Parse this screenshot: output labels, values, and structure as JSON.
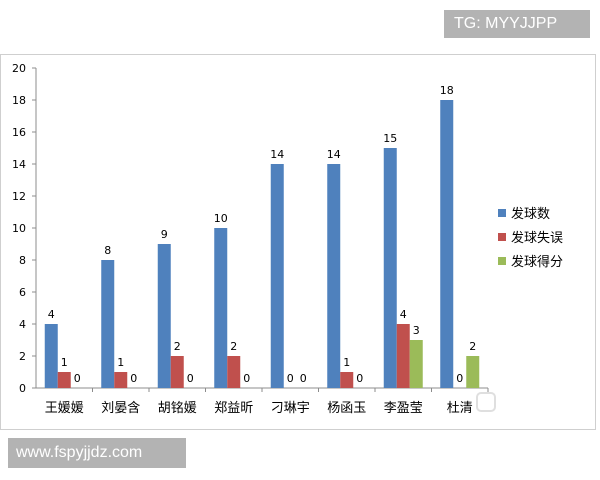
{
  "header_tag": "TG: MYYJJPP",
  "footer_site": "www.fspyjjdz.com",
  "chart_data": {
    "type": "bar",
    "categories": [
      "王媛媛",
      "刘晏含",
      "胡铭媛",
      "郑益昕",
      "刁琳宇",
      "杨函玉",
      "李盈莹",
      "杜清"
    ],
    "series": [
      {
        "name": "发球数",
        "color": "#4f81bd",
        "values": [
          4,
          8,
          9,
          10,
          14,
          14,
          15,
          18
        ]
      },
      {
        "name": "发球失误",
        "color": "#c0504d",
        "values": [
          1,
          1,
          2,
          2,
          0,
          1,
          4,
          0
        ]
      },
      {
        "name": "发球得分",
        "color": "#9bbb59",
        "values": [
          0,
          0,
          0,
          0,
          0,
          0,
          3,
          2
        ]
      }
    ],
    "ylim": [
      0,
      20
    ],
    "yticks": [
      0,
      2,
      4,
      6,
      8,
      10,
      12,
      14,
      16,
      18,
      20
    ],
    "grid": false,
    "legend": "right"
  }
}
